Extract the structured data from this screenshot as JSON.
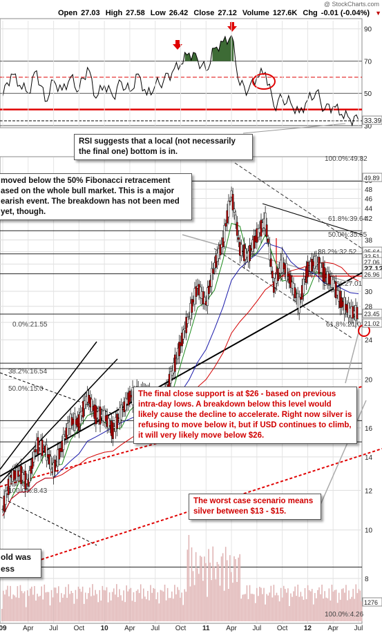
{
  "header": {
    "open_label": "Open",
    "open": "27.03",
    "high_label": "High",
    "high": "27.58",
    "low_label": "Low",
    "low": "26.42",
    "close_label": "Close",
    "close": "27.12",
    "volume_label": "Volume",
    "volume": "127.6K",
    "chg_label": "Chg",
    "chg": "-0.01 (-0.04%)",
    "chg_icon": "triangle-down-icon"
  },
  "watermark": "@ StockCharts.com",
  "colors": {
    "price": "#000000",
    "ma_fast": "#1a8a1a",
    "ma_mid": "#1a1aaa",
    "ma_slow": "#d40000",
    "rsi_fill": "#3d6b35",
    "annotation_red": "#e00000",
    "volume": "#e0b5b5"
  },
  "annotations": {
    "rsi_note": "RSI suggests that a local (not necessarily the final one) bottom is in.",
    "fib_note": "moved below the 50% Fibonacci retracement ased on the whole bull market. This is a major earish event. The breakdown has not been med yet, though.",
    "support_note": "The final close support is at $26 - based on previous intra-day lows. A breakdown below this level would likely cause the decline to accelerate. Right now silver is refusing to move below it, but if USD continues to climb, it will very likely move below $26.",
    "worst_note": "The worst case scenario means silver between $13 - $15.",
    "gold_note": "old was ess"
  },
  "chart_data": [
    {
      "type": "line",
      "name": "RSI",
      "y_ticks": [
        30,
        50,
        70,
        90
      ],
      "ylim": [
        30,
        95
      ],
      "reference_lines": [
        30,
        50,
        70
      ],
      "annotation_lines": [
        {
          "value": 60,
          "style": "dashed-red"
        },
        {
          "value": 40,
          "style": "solid-red"
        }
      ],
      "current_value_label": "33.39",
      "x": [
        "2009-01",
        "2009-02",
        "2009-03",
        "2009-04",
        "2009-05",
        "2009-06",
        "2009-07",
        "2009-08",
        "2009-09",
        "2009-10",
        "2009-11",
        "2009-12",
        "2010-01",
        "2010-02",
        "2010-03",
        "2010-04",
        "2010-05",
        "2010-06",
        "2010-07",
        "2010-08",
        "2010-09",
        "2010-10",
        "2010-11",
        "2010-12",
        "2011-01",
        "2011-02",
        "2011-03",
        "2011-04",
        "2011-05",
        "2011-06",
        "2011-07",
        "2011-08",
        "2011-09",
        "2011-10",
        "2011-11",
        "2011-12",
        "2012-01",
        "2012-02",
        "2012-03",
        "2012-04",
        "2012-05",
        "2012-06",
        "2012-07"
      ],
      "values": [
        48,
        62,
        55,
        50,
        64,
        45,
        58,
        52,
        60,
        52,
        66,
        47,
        55,
        48,
        57,
        51,
        62,
        49,
        55,
        58,
        63,
        68,
        75,
        71,
        64,
        78,
        82,
        86,
        55,
        52,
        60,
        63,
        42,
        47,
        44,
        38,
        46,
        51,
        40,
        42,
        37,
        34,
        33.39
      ]
    },
    {
      "type": "candlestick",
      "name": "Silver price",
      "y_ticks": [
        8,
        10,
        12,
        14,
        16,
        20,
        24,
        26,
        28,
        30,
        34,
        36,
        38,
        42,
        44,
        46,
        48,
        50
      ],
      "ylim": [
        7,
        51
      ],
      "scale": "log",
      "price_labels": [
        "49.89",
        "35.64",
        "32.51",
        "27.06",
        "27.12",
        "26.96",
        "23.45",
        "21.02"
      ],
      "fibonacci_labels": [
        {
          "label": "100.0%:49.82",
          "value": 49.82
        },
        {
          "label": "61.8%:39.64",
          "value": 39.64
        },
        {
          "label": "50.0%:35.65",
          "value": 35.65
        },
        {
          "label": "38.2%:32.52",
          "value": 32.52
        },
        {
          "label": "50.0%:27.01",
          "value": 27.01
        },
        {
          "label": "0.0%:21.55",
          "value": 21.55
        },
        {
          "label": "61.8%:21.02",
          "value": 21.02
        },
        {
          "label": "38.2%:16.54",
          "value": 16.54
        },
        {
          "label": "50.0%:15.0",
          "value": 15.0
        },
        {
          "label": "100.0%:8.43",
          "value": 8.43
        }
      ],
      "x": [
        "2009-01",
        "2009-02",
        "2009-03",
        "2009-04",
        "2009-05",
        "2009-06",
        "2009-07",
        "2009-08",
        "2009-09",
        "2009-10",
        "2009-11",
        "2009-12",
        "2010-01",
        "2010-02",
        "2010-03",
        "2010-04",
        "2010-05",
        "2010-06",
        "2010-07",
        "2010-08",
        "2010-09",
        "2010-10",
        "2010-11",
        "2010-12",
        "2011-01",
        "2011-02",
        "2011-03",
        "2011-04",
        "2011-05",
        "2011-06",
        "2011-07",
        "2011-08",
        "2011-09",
        "2011-10",
        "2011-11",
        "2011-12",
        "2012-01",
        "2012-02",
        "2012-03",
        "2012-04",
        "2012-05",
        "2012-06",
        "2012-07"
      ],
      "values": [
        11.0,
        12.8,
        13.0,
        12.4,
        14.8,
        14.5,
        13.2,
        14.7,
        16.5,
        16.4,
        18.5,
        17.0,
        16.9,
        15.8,
        17.2,
        18.5,
        18.6,
        18.8,
        17.6,
        18.2,
        20.6,
        23.5,
        26.8,
        30.6,
        28.4,
        33.8,
        37.6,
        47.0,
        36.5,
        35.2,
        38.8,
        41.5,
        30.6,
        34.2,
        31.4,
        28.2,
        33.2,
        34.5,
        32.4,
        31.1,
        28.5,
        27.3,
        27.12
      ],
      "x_tick_labels": [
        "09",
        "Apr",
        "Jul",
        "Oct",
        "10",
        "Apr",
        "Jul",
        "Oct",
        "11",
        "Apr",
        "Jul",
        "Oct",
        "12",
        "Apr",
        "Jul"
      ]
    },
    {
      "type": "bar",
      "name": "Volume",
      "current_value_label": "127.6K",
      "right_label": "100.0%:4.26"
    }
  ]
}
